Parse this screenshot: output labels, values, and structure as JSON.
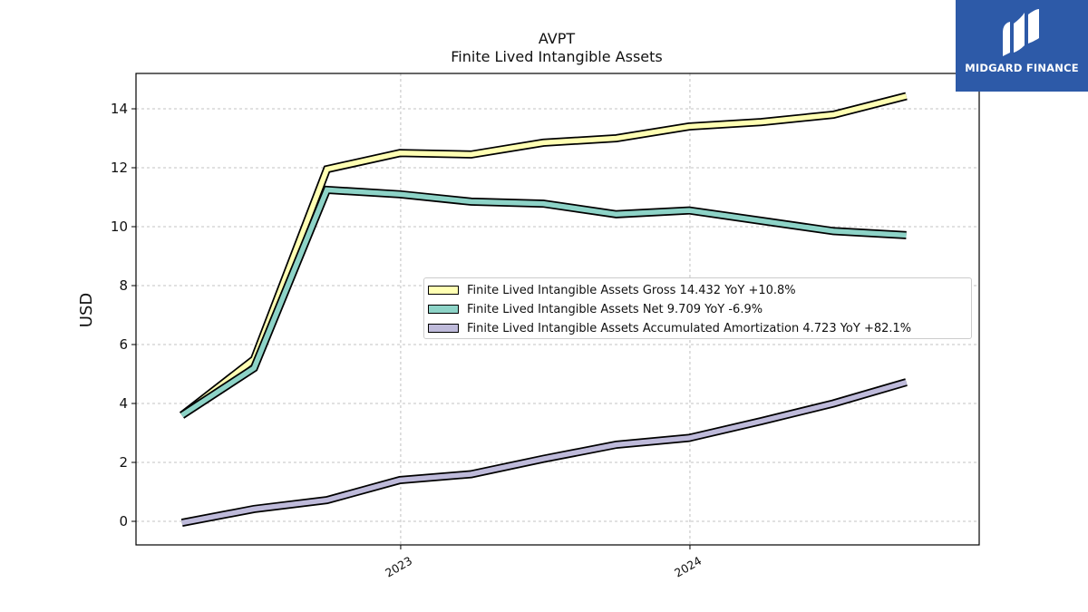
{
  "chart_data": {
    "type": "line",
    "title": "AVPT",
    "subtitle": "Finite Lived Intangible Assets",
    "ylabel": "USD",
    "xlabel": "",
    "ylim": [
      -0.8,
      15.2
    ],
    "xlim": [
      "2022-02-01",
      "2024-12-31"
    ],
    "yticks": [
      0,
      2,
      4,
      6,
      8,
      10,
      12,
      14
    ],
    "xticks": [
      {
        "date": "2023-01-01",
        "label": "2023"
      },
      {
        "date": "2024-01-01",
        "label": "2024"
      }
    ],
    "grid": true,
    "legend_position": "center-right",
    "series": [
      {
        "name": "Finite Lived Intangible Assets Gross",
        "legend": "Finite Lived Intangible Assets Gross  14.432 YoY +10.8%",
        "color": "#ffffb3",
        "x": [
          "2022-03-31",
          "2022-06-30",
          "2022-09-30",
          "2022-12-31",
          "2023-03-31",
          "2023-06-30",
          "2023-09-30",
          "2023-12-31",
          "2024-03-31",
          "2024-06-30",
          "2024-09-30"
        ],
        "y": [
          3.6,
          5.5,
          11.95,
          12.5,
          12.45,
          12.85,
          13.0,
          13.4,
          13.55,
          13.8,
          14.43
        ]
      },
      {
        "name": "Finite Lived Intangible Assets Net",
        "legend": "Finite Lived Intangible Assets Net  9.709 YoY -6.9%",
        "color": "#8dd3c7",
        "x": [
          "2022-03-31",
          "2022-06-30",
          "2022-09-30",
          "2022-12-31",
          "2023-03-31",
          "2023-06-30",
          "2023-09-30",
          "2023-12-31",
          "2024-03-31",
          "2024-06-30",
          "2024-09-30"
        ],
        "y": [
          3.6,
          5.2,
          11.25,
          11.1,
          10.85,
          10.78,
          10.42,
          10.55,
          10.2,
          9.85,
          9.71
        ]
      },
      {
        "name": "Finite Lived Intangible Assets Accumulated Amortization",
        "legend": "Finite Lived Intangible Assets Accumulated Amortization  4.723 YoY +82.1%",
        "color": "#bebada",
        "x": [
          "2022-03-31",
          "2022-06-30",
          "2022-09-30",
          "2022-12-31",
          "2023-03-31",
          "2023-06-30",
          "2023-09-30",
          "2023-12-31",
          "2024-03-31",
          "2024-06-30",
          "2024-09-30"
        ],
        "y": [
          -0.05,
          0.42,
          0.72,
          1.4,
          1.6,
          2.12,
          2.6,
          2.83,
          3.4,
          4.0,
          4.72
        ]
      }
    ]
  },
  "logo": {
    "text": "MIDGARD FINANCE",
    "color": "#2d5aa8"
  }
}
